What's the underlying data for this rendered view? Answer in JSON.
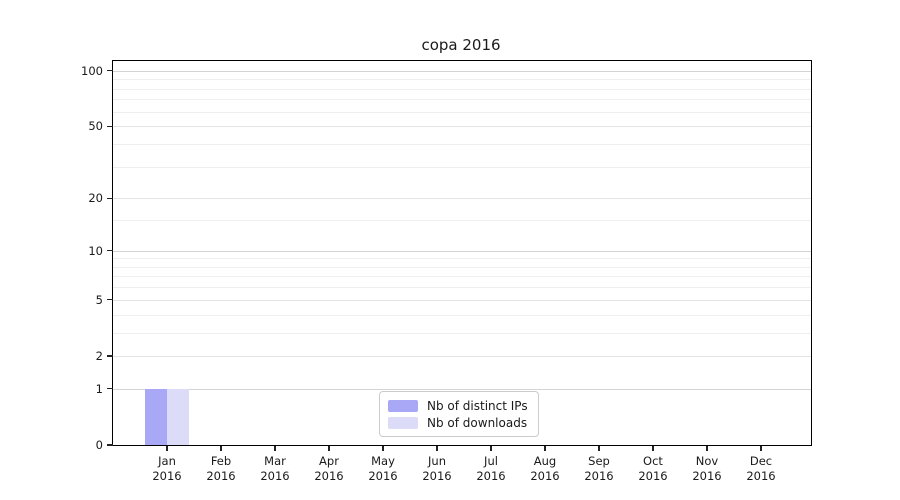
{
  "chart_data": {
    "type": "bar",
    "title": "copa 2016",
    "x": {
      "months": [
        "Jan",
        "Feb",
        "Mar",
        "Apr",
        "May",
        "Jun",
        "Jul",
        "Aug",
        "Sep",
        "Oct",
        "Nov",
        "Dec"
      ],
      "year": "2016"
    },
    "series": [
      {
        "name": "Nb of distinct IPs",
        "color": "#a8a8f7",
        "values": [
          1,
          0,
          0,
          0,
          0,
          0,
          0,
          0,
          0,
          0,
          0,
          0
        ]
      },
      {
        "name": "Nb of downloads",
        "color": "#dcdcf8",
        "values": [
          1,
          0,
          0,
          0,
          0,
          0,
          0,
          0,
          0,
          0,
          0,
          0
        ]
      }
    ],
    "y_axis": {
      "scale": "log1p",
      "ylim": [
        0,
        113
      ],
      "major_ticks": [
        0,
        1,
        2,
        5,
        10,
        20,
        50,
        100
      ],
      "minor_ticks": [
        3,
        4,
        6,
        7,
        8,
        9,
        15,
        30,
        40,
        60,
        70,
        80,
        90
      ],
      "emphasized_gridlines": [
        1,
        10,
        100
      ]
    },
    "legend": {
      "position": "lower center"
    },
    "grid": true
  },
  "colors": {
    "background": "#ffffff",
    "text": "#1a1a1a",
    "spine": "#000000",
    "gridline_emphasized": "#d4d4d4",
    "gridline_major": "#e4e4e4",
    "gridline_minor": "#efefef",
    "legend_border": "#cccccc"
  }
}
